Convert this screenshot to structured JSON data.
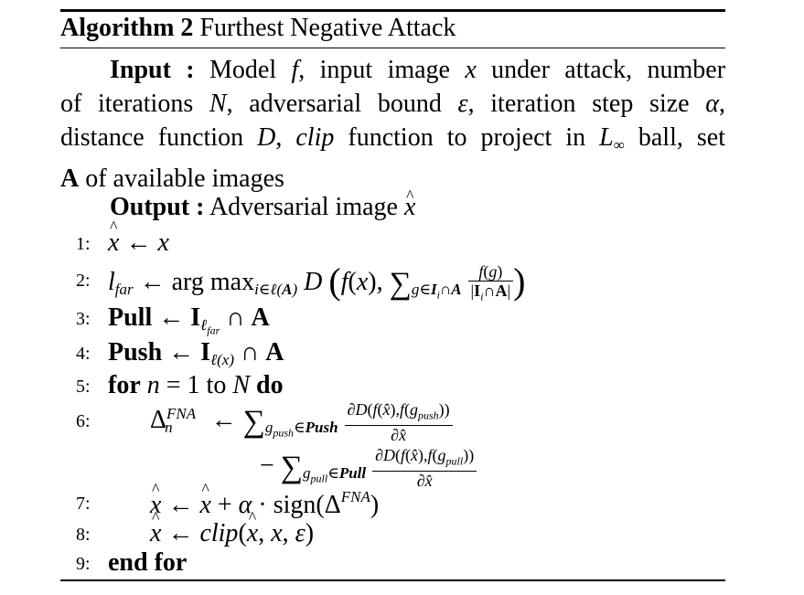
{
  "algorithm": {
    "label": "Algorithm 2",
    "name": "Furthest Negative Attack",
    "input_label": "Input :",
    "input_lines": [
      "Model f, input image x under attack, number",
      "of iterations N, adversarial bound ε, iteration step size α,",
      "distance function D, clip function to project in L∞ ball, set",
      "A of available images"
    ],
    "output_label": "Output :",
    "output_text": "Adversarial image x̂",
    "steps": [
      {
        "num": "1:",
        "text": "x̂ ← x"
      },
      {
        "num": "2:",
        "text": "l_far ← arg max_{i∈ℓ(A)} D ( f(x), Σ_{g∈I_i∩A} f(g) / |I_i∩A| )"
      },
      {
        "num": "3:",
        "text": "Pull ← I_{ℓ_far} ∩ A"
      },
      {
        "num": "4:",
        "text": "Push ← I_{ℓ(x)} ∩ A"
      },
      {
        "num": "5:",
        "text": "for n = 1 to N do"
      },
      {
        "num": "6:",
        "text": "Δ_n^FNA ← Σ_{g_push∈Push} ∂D(f(x̂),f(g_push))/∂x̂ − Σ_{g_pull∈Pull} ∂D(f(x̂),f(g_pull))/∂x̂"
      },
      {
        "num": "7:",
        "text": "x̂ ← x̂ + α · sign(Δ^FNA)"
      },
      {
        "num": "8:",
        "text": "x̂ ← clip(x̂, x, ε)"
      },
      {
        "num": "9:",
        "text": "end for"
      }
    ]
  }
}
